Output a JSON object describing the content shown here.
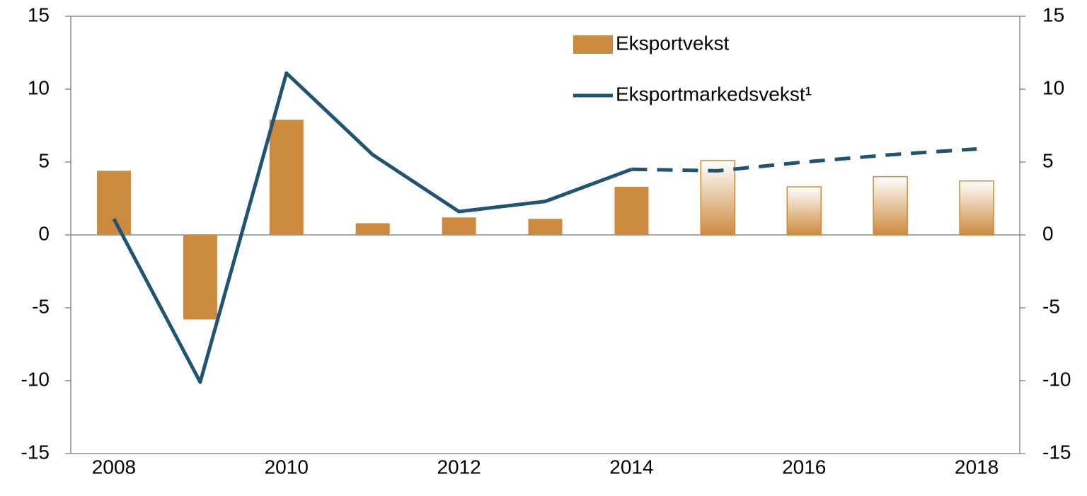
{
  "chart_data": {
    "type": "bar_line",
    "categories": [
      "2008",
      null,
      "2010",
      null,
      "2012",
      null,
      "2014",
      null,
      "2016",
      null,
      "2018"
    ],
    "series": [
      {
        "name": "Eksportvekst",
        "type": "bar",
        "color": "#cc8a3f",
        "values": [
          4.4,
          -5.8,
          7.9,
          0.8,
          1.2,
          1.1,
          3.3,
          5.1,
          3.3,
          4.0,
          3.7
        ],
        "gradient_from_index": 7
      },
      {
        "name": "Eksportmarkedsvekst¹",
        "type": "line",
        "color": "#1f5473",
        "axis": "y2",
        "values": [
          1.1,
          -10.1,
          11.1,
          5.5,
          1.6,
          2.3,
          4.5,
          4.4,
          5.0,
          5.5,
          5.9
        ],
        "dashed_from_index": 6
      }
    ],
    "ylim": [
      -15,
      15
    ],
    "yticks": [
      -15,
      -10,
      -5,
      0,
      5,
      10,
      15
    ],
    "y2lim": [
      -15,
      15
    ],
    "y2ticks": [
      -15,
      -10,
      -5,
      0,
      5,
      10,
      15
    ],
    "legend": "top-center"
  }
}
